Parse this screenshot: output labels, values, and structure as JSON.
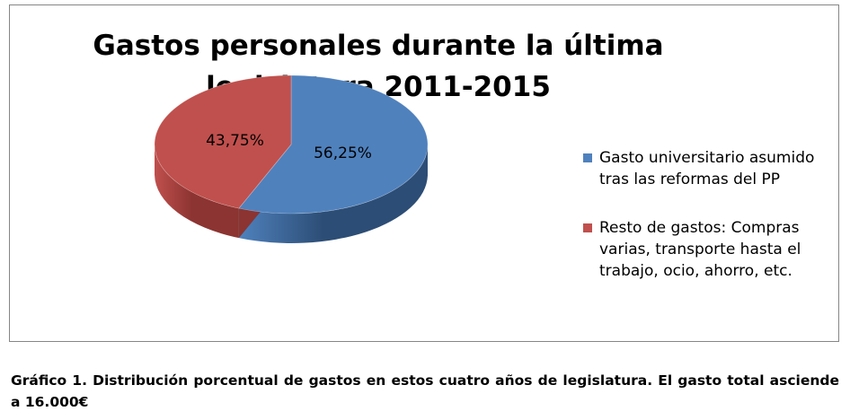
{
  "chart_data": {
    "type": "pie",
    "title": [
      "Gastos personales durante la última",
      "legislatura 2011-2015"
    ],
    "series": [
      {
        "name": "Gasto universitario asumido tras las reformas del PP",
        "value": 56.25,
        "label": "56,25%",
        "color": "#4f81bd",
        "side_color": "#2c4d75"
      },
      {
        "name": "Resto de gastos: Compras varias, transporte hasta el trabajo, ocio, ahorro, etc.",
        "value": 43.75,
        "label": "43,75%",
        "color": "#c0504d",
        "side_color": "#8c3431"
      }
    ],
    "legend_position": "right",
    "style": "3d"
  },
  "caption": "Gráfico 1. Distribución porcentual de gastos en estos cuatro años de legislatura. El gasto total asciende a 16.000€"
}
